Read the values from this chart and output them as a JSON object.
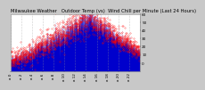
{
  "title": "Milwaukee Weather   Outdoor Temp (vs)  Wind Chill per Minute (Last 24 Hours)",
  "bg_color": "#c8c8c8",
  "plot_bg_color": "#ffffff",
  "text_color": "#000000",
  "blue_color": "#0000cc",
  "red_color": "#ff0000",
  "ylim": [
    -10,
    60
  ],
  "yticks": [
    0,
    10,
    20,
    30,
    40,
    50,
    60
  ],
  "n_points": 1440,
  "title_fontsize": 3.8,
  "tick_fontsize": 3.0,
  "grid_color": "#999999"
}
